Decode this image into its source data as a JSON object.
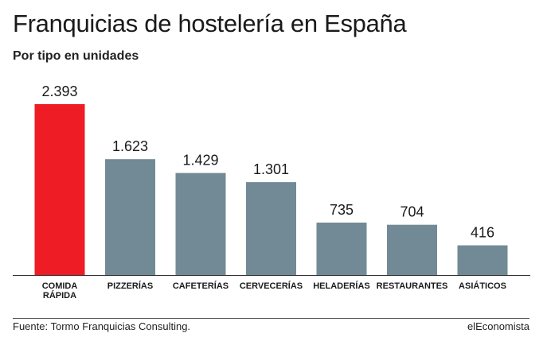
{
  "header": {
    "title": "Franquicias de hostelería en España",
    "subtitle": "Por tipo en unidades"
  },
  "footer": {
    "source": "Fuente: Tormo Franquicias Consulting.",
    "brand": "elEconomista"
  },
  "colors": {
    "highlight": "#ee1c25",
    "bar": "#728a96",
    "axis": "#333333",
    "text": "#1a1a1a"
  },
  "chart_data": {
    "type": "bar",
    "title": "Franquicias de hostelería en España",
    "subtitle": "Por tipo en unidades",
    "categories": [
      "COMIDA\nRÁPIDA",
      "PIZZERÍAS",
      "CAFETERÍAS",
      "CERVECERÍAS",
      "HELADERÍAS",
      "RESTAURANTES",
      "ASIÁTICOS"
    ],
    "values": [
      2393,
      1623,
      1429,
      1301,
      735,
      704,
      416
    ],
    "value_labels": [
      "2.393",
      "1.623",
      "1.429",
      "1.301",
      "735",
      "704",
      "416"
    ],
    "highlight_index": 0,
    "ylim": [
      0,
      2393
    ],
    "grid": false,
    "legend": "none"
  }
}
